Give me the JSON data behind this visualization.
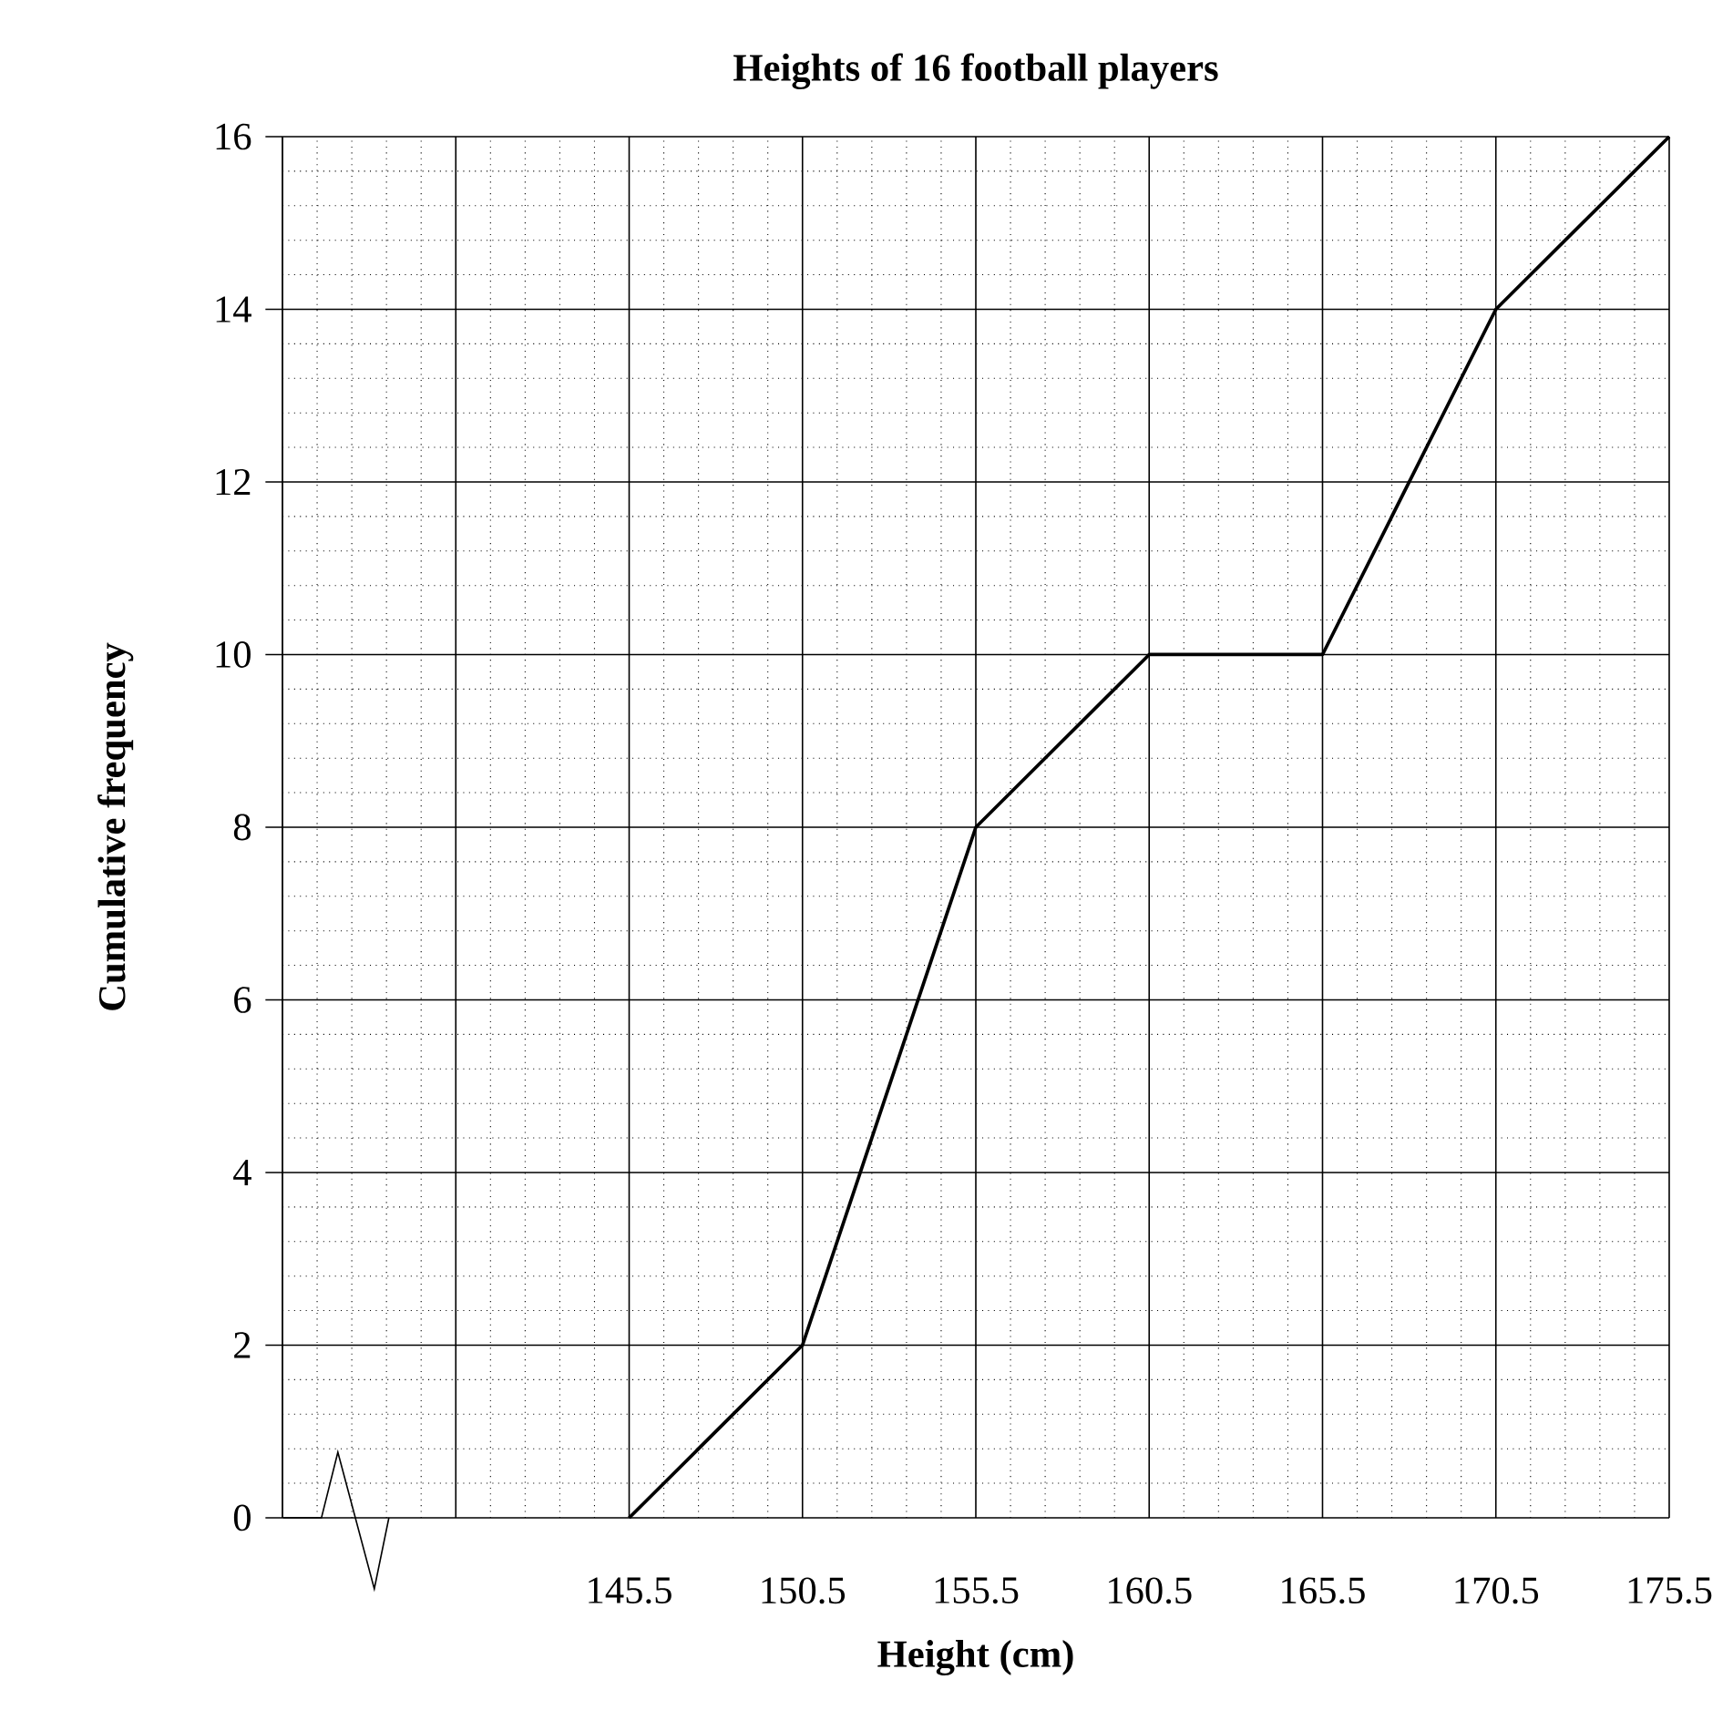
{
  "chart_data": {
    "type": "line",
    "title": "Heights of 16 football players",
    "xlabel": "Height (cm)",
    "ylabel": "Cumulative frequency",
    "x": [
      145.5,
      150.5,
      155.5,
      160.5,
      165.5,
      170.5,
      175.5
    ],
    "values": [
      0,
      2,
      8,
      10,
      10,
      14,
      16
    ],
    "color": "#000000",
    "xlim": [
      135.5,
      175.5
    ],
    "ylim": [
      0,
      16
    ],
    "xticks": [
      {
        "value": 135.5,
        "label": null
      },
      {
        "value": 140.5,
        "label": null
      },
      145.5,
      150.5,
      155.5,
      160.5,
      165.5,
      170.5,
      175.5
    ],
    "yticks": [
      0,
      2,
      4,
      6,
      8,
      10,
      12,
      14,
      16
    ],
    "grid": true,
    "marker": "none",
    "line_style": "solid"
  }
}
